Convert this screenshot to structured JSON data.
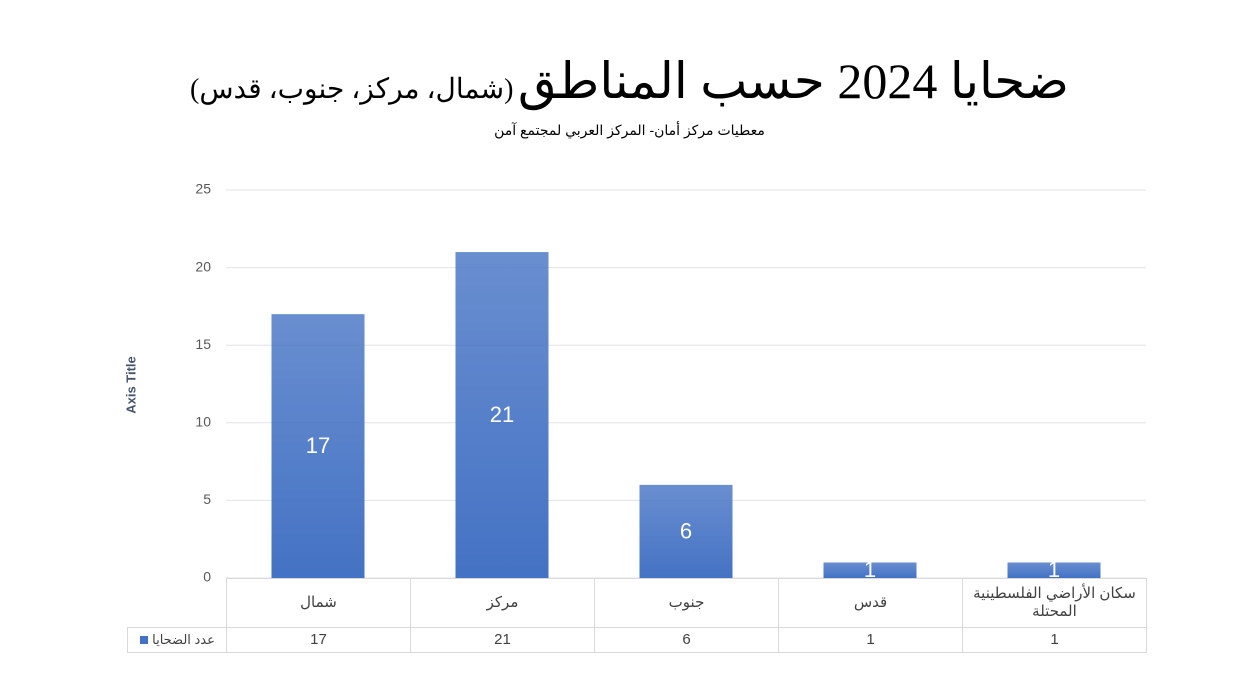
{
  "chart_data": {
    "type": "bar",
    "title": "ضحايا 2024 حسب المناطق",
    "title_note": "(شمال، مركز، جنوب، قدس)",
    "subtitle": "معطيات مركز أمان- المركز العربي لمجتمع آمن",
    "y_axis_title": "Axis Title",
    "categories": [
      "شمال",
      "مركز",
      "جنوب",
      "قدس",
      "سكان الأراضي الفلسطينية المحتلة"
    ],
    "series": [
      {
        "name": "عدد الضحايا",
        "color": "#4472c4",
        "values": [
          17,
          21,
          6,
          1,
          1
        ]
      }
    ],
    "ylim": [
      0,
      25
    ],
    "yticks": [
      0,
      5,
      10,
      15,
      20,
      25
    ],
    "grid": true,
    "data_table": true
  }
}
